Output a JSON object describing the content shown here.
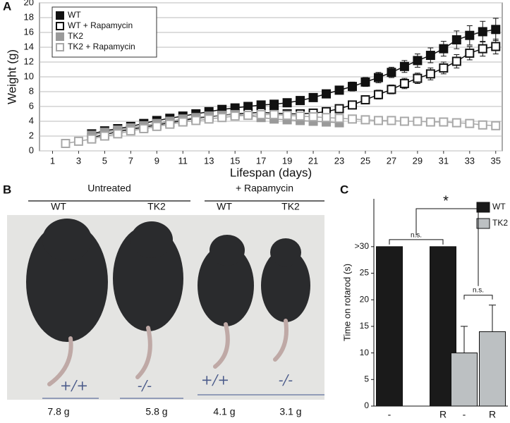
{
  "panel_labels": [
    "A",
    "B",
    "C"
  ],
  "chart_data": [
    {
      "type": "line",
      "xlabel": "Lifespan (days)",
      "ylabel": "Weight (g)",
      "legend": "upper left",
      "grid": true,
      "x": [
        2,
        3,
        4,
        5,
        6,
        7,
        8,
        9,
        10,
        11,
        12,
        13,
        14,
        15,
        16,
        17,
        18,
        19,
        20,
        21,
        22,
        23,
        24,
        25,
        26,
        27,
        28,
        29,
        30,
        31,
        32,
        33,
        34,
        35
      ],
      "xlim": [
        0,
        35.5
      ],
      "xticks": [
        1,
        3,
        5,
        7,
        9,
        11,
        13,
        15,
        17,
        19,
        21,
        23,
        25,
        27,
        29,
        31,
        33,
        35
      ],
      "ylim": [
        0,
        20
      ],
      "yticks": [
        0,
        2,
        4,
        6,
        8,
        10,
        12,
        14,
        16,
        18,
        20
      ],
      "series": [
        {
          "name": "WT",
          "color": "#111111",
          "marker": "filled",
          "values": [
            null,
            null,
            2.3,
            2.7,
            3.0,
            3.3,
            3.7,
            4.1,
            4.4,
            4.7,
            5.0,
            5.3,
            5.6,
            5.8,
            6.0,
            6.2,
            6.3,
            6.5,
            6.8,
            7.2,
            7.7,
            8.2,
            8.7,
            9.3,
            9.9,
            10.6,
            11.4,
            12.2,
            12.9,
            13.8,
            15.0,
            15.6,
            16.1,
            16.4
          ],
          "errors": [
            null,
            null,
            0.3,
            0.3,
            0.3,
            0.3,
            0.3,
            0.3,
            0.3,
            0.3,
            0.3,
            0.3,
            0.4,
            0.4,
            0.4,
            0.4,
            0.4,
            0.4,
            0.4,
            0.4,
            0.4,
            0.4,
            0.6,
            0.6,
            0.7,
            0.7,
            0.8,
            0.9,
            1.0,
            1.0,
            1.2,
            1.3,
            1.4,
            1.5
          ]
        },
        {
          "name": "WT + Rapamycin",
          "color": "#111111",
          "marker": "open",
          "values": [
            null,
            null,
            1.8,
            2.2,
            2.6,
            2.9,
            3.2,
            3.5,
            3.8,
            4.1,
            4.4,
            4.6,
            4.8,
            5.0,
            5.1,
            5.2,
            5.1,
            5.0,
            5.0,
            5.1,
            5.3,
            5.7,
            6.2,
            6.9,
            7.6,
            8.3,
            9.1,
            9.8,
            10.4,
            11.2,
            12.1,
            13.2,
            13.8,
            14.1
          ],
          "errors": [
            null,
            null,
            0.3,
            0.3,
            0.3,
            0.3,
            0.3,
            0.3,
            0.3,
            0.3,
            0.3,
            0.3,
            0.4,
            0.4,
            0.4,
            0.4,
            0.4,
            0.4,
            0.4,
            0.4,
            0.4,
            0.4,
            0.5,
            0.5,
            0.6,
            0.6,
            0.7,
            0.7,
            0.8,
            0.8,
            0.9,
            0.9,
            1.0,
            1.0
          ]
        },
        {
          "name": "TK2",
          "color": "#9a9a9a",
          "marker": "filled",
          "values": [
            null,
            null,
            2.1,
            2.5,
            2.8,
            3.1,
            3.4,
            3.7,
            4.0,
            4.3,
            4.5,
            4.7,
            4.8,
            4.9,
            4.8,
            4.5,
            4.3,
            4.2,
            4.1,
            4.0,
            3.9,
            3.8,
            null,
            null,
            null,
            null,
            null,
            null,
            null,
            null,
            null,
            null,
            null,
            null
          ],
          "errors": [
            null,
            null,
            0.3,
            0.3,
            0.3,
            0.3,
            0.3,
            0.3,
            0.3,
            0.3,
            0.3,
            0.3,
            0.3,
            0.3,
            0.3,
            0.3,
            0.3,
            0.3,
            0.3,
            0.3,
            0.3,
            0.3,
            null,
            null,
            null,
            null,
            null,
            null,
            null,
            null,
            null,
            null,
            null,
            null
          ]
        },
        {
          "name": "TK2 + Rapamycin",
          "color": "#a8a8a8",
          "marker": "open",
          "values": [
            1.0,
            1.3,
            1.6,
            2.0,
            2.3,
            2.7,
            3.0,
            3.3,
            3.6,
            3.9,
            4.1,
            4.3,
            4.5,
            4.7,
            4.8,
            4.9,
            4.9,
            4.8,
            4.7,
            4.6,
            4.5,
            4.4,
            4.3,
            4.2,
            4.1,
            4.1,
            4.0,
            4.0,
            3.9,
            3.9,
            3.8,
            3.7,
            3.5,
            3.4
          ],
          "errors": [
            0.2,
            0.2,
            0.2,
            0.2,
            0.2,
            0.2,
            0.2,
            0.2,
            0.2,
            0.2,
            0.2,
            0.2,
            0.2,
            0.2,
            0.2,
            0.2,
            0.2,
            0.2,
            0.2,
            0.2,
            0.2,
            0.2,
            0.2,
            0.2,
            0.2,
            0.2,
            0.2,
            0.2,
            0.2,
            0.2,
            0.2,
            0.2,
            0.2,
            0.2
          ]
        }
      ]
    },
    {
      "type": "bar",
      "ylabel": "Time on rotarod (s)",
      "legend": "upper right",
      "categories": [
        "-",
        "R",
        "-",
        "R"
      ],
      "ylim": [
        0,
        39
      ],
      "yticks": [
        0,
        5,
        10,
        15,
        20,
        25,
        {
          "value": 30,
          "label": ">30"
        }
      ],
      "series": [
        {
          "name": "WT",
          "color": "#1a1a1a",
          "values": [
            30,
            30,
            null,
            null
          ],
          "errors": [
            null,
            null,
            null,
            null
          ]
        },
        {
          "name": "TK2",
          "color": "#bcc0c2",
          "values": [
            null,
            null,
            10,
            14
          ],
          "errors": [
            null,
            null,
            5,
            5
          ]
        }
      ],
      "annotations": [
        "n.s.",
        "n.s.",
        "*"
      ]
    }
  ],
  "photo": {
    "groups": [
      {
        "label": "Untreated",
        "columns": [
          "WT",
          "TK2"
        ]
      },
      {
        "label": "+ Rapamycin",
        "columns": [
          "WT",
          "TK2"
        ]
      }
    ],
    "tube_labels": [
      "+/+",
      "-/-",
      "+/+",
      "-/-"
    ],
    "weights": [
      "7.8 g",
      "5.8 g",
      "4.1 g",
      "3.1 g"
    ]
  }
}
